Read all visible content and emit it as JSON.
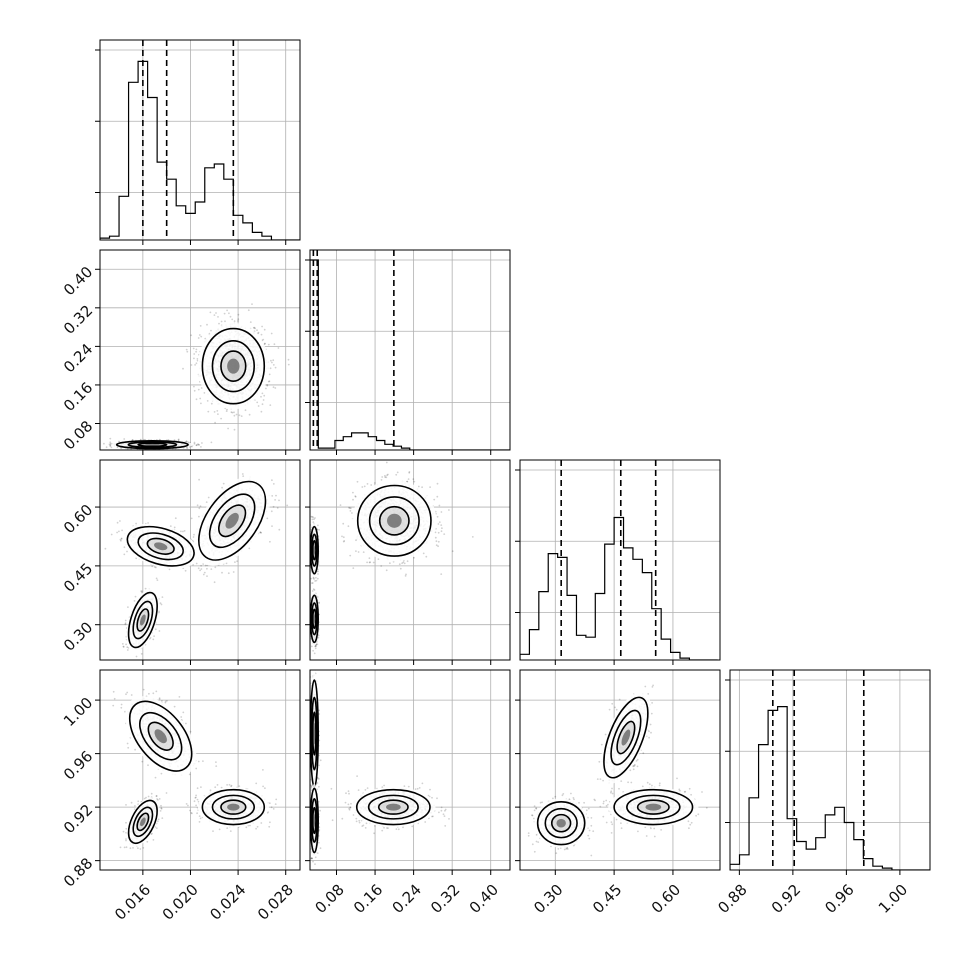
{
  "chart_data": {
    "type": "corner",
    "variables": [
      {
        "range": [
          0.0124,
          0.0292
        ],
        "ticks": [
          0.016,
          0.02,
          0.024,
          0.028
        ],
        "tick_labels": [
          "0.016",
          "0.020",
          "0.024",
          "0.028"
        ],
        "quantiles": [
          0.016,
          0.018,
          0.0236
        ]
      },
      {
        "range": [
          0.025,
          0.44
        ],
        "ticks": [
          0.08,
          0.16,
          0.24,
          0.32,
          0.4
        ],
        "tick_labels": [
          "0.08",
          "0.16",
          "0.24",
          "0.32",
          "0.40"
        ],
        "quantiles": [
          0.032,
          0.04,
          0.199
        ]
      },
      {
        "range": [
          0.21,
          0.72
        ],
        "ticks": [
          0.3,
          0.45,
          0.6
        ],
        "tick_labels": [
          "0.30",
          "0.45",
          "0.60"
        ],
        "quantiles": [
          0.315,
          0.467,
          0.556
        ]
      },
      {
        "range": [
          0.873,
          1.0225
        ],
        "ticks": [
          0.88,
          0.92,
          0.96,
          1.0
        ],
        "tick_labels": [
          "0.88",
          "0.92",
          "0.96",
          "1.00"
        ],
        "quantiles": [
          0.905,
          0.921,
          0.973
        ]
      }
    ],
    "histograms": [
      {
        "variable": 0,
        "x_start": 0.0124,
        "bin_width": 0.0008,
        "max": 100,
        "counts": [
          1,
          2,
          23,
          83,
          94,
          75,
          41,
          32,
          18,
          14,
          20,
          38,
          40,
          32,
          13,
          9,
          4,
          2,
          0,
          0,
          0
        ]
      },
      {
        "variable": 1,
        "x_start": 0.025,
        "bin_width": 0.01725,
        "max": 100,
        "counts": [
          100,
          1,
          1,
          5,
          7,
          9,
          9,
          7,
          5,
          3,
          2,
          1,
          0,
          0,
          0,
          0,
          0,
          0,
          0,
          0,
          0,
          0,
          0,
          0
        ]
      },
      {
        "variable": 2,
        "x_start": 0.21,
        "bin_width": 0.024,
        "max": 100,
        "counts": [
          3,
          16,
          36,
          56,
          54,
          34,
          13,
          12,
          35,
          61,
          75,
          59,
          53,
          46,
          27,
          11,
          4,
          1,
          0,
          0,
          0
        ]
      },
      {
        "variable": 3,
        "x_start": 0.873,
        "bin_width": 0.00712,
        "max": 100,
        "counts": [
          3,
          8,
          38,
          66,
          84,
          86,
          27,
          15,
          11,
          17,
          29,
          33,
          25,
          16,
          6,
          2,
          1,
          0,
          0,
          0,
          0
        ]
      }
    ],
    "scatter_panels": [
      {
        "x": 0,
        "y": 1,
        "modes": [
          {
            "cx": 0.0236,
            "cy": 0.199,
            "sx": 0.0013,
            "sy": 0.039,
            "rho": 0.0,
            "n": 1500
          },
          {
            "cx": 0.0168,
            "cy": 0.036,
            "sx": 0.0015,
            "sy": 0.004,
            "rho": 0.0,
            "n": 900
          }
        ]
      },
      {
        "x": 0,
        "y": 2,
        "modes": [
          {
            "cx": 0.016,
            "cy": 0.312,
            "sx": 0.0006,
            "sy": 0.035,
            "rho": 0.5,
            "n": 500
          },
          {
            "cx": 0.0175,
            "cy": 0.5,
            "sx": 0.0014,
            "sy": 0.025,
            "rho": -0.35,
            "n": 550
          },
          {
            "cx": 0.0235,
            "cy": 0.565,
            "sx": 0.0014,
            "sy": 0.05,
            "rho": 0.5,
            "n": 800
          }
        ]
      },
      {
        "x": 1,
        "y": 2,
        "modes": [
          {
            "cx": 0.2,
            "cy": 0.565,
            "sx": 0.038,
            "sy": 0.045,
            "rho": 0.0,
            "n": 1100
          },
          {
            "cx": 0.034,
            "cy": 0.315,
            "sx": 0.004,
            "sy": 0.03,
            "rho": 0.0,
            "n": 500
          },
          {
            "cx": 0.034,
            "cy": 0.49,
            "sx": 0.004,
            "sy": 0.03,
            "rho": 0.0,
            "n": 500
          }
        ]
      },
      {
        "x": 0,
        "y": 3,
        "modes": [
          {
            "cx": 0.0175,
            "cy": 0.973,
            "sx": 0.0013,
            "sy": 0.013,
            "rho": -0.5,
            "n": 650
          },
          {
            "cx": 0.016,
            "cy": 0.909,
            "sx": 0.0006,
            "sy": 0.008,
            "rho": 0.5,
            "n": 500
          },
          {
            "cx": 0.0236,
            "cy": 0.92,
            "sx": 0.0013,
            "sy": 0.0065,
            "rho": 0.0,
            "n": 750
          }
        ]
      },
      {
        "x": 1,
        "y": 3,
        "modes": [
          {
            "cx": 0.198,
            "cy": 0.92,
            "sx": 0.038,
            "sy": 0.0065,
            "rho": 0.0,
            "n": 900
          },
          {
            "cx": 0.034,
            "cy": 0.975,
            "sx": 0.004,
            "sy": 0.02,
            "rho": 0.0,
            "n": 450
          },
          {
            "cx": 0.034,
            "cy": 0.91,
            "sx": 0.004,
            "sy": 0.012,
            "rho": 0.0,
            "n": 450
          }
        ]
      },
      {
        "x": 2,
        "y": 3,
        "modes": [
          {
            "cx": 0.315,
            "cy": 0.908,
            "sx": 0.03,
            "sy": 0.008,
            "rho": 0.0,
            "n": 550
          },
          {
            "cx": 0.48,
            "cy": 0.972,
            "sx": 0.028,
            "sy": 0.015,
            "rho": 0.6,
            "n": 600
          },
          {
            "cx": 0.55,
            "cy": 0.92,
            "sx": 0.05,
            "sy": 0.0065,
            "rho": 0.0,
            "n": 700
          }
        ]
      }
    ],
    "grid": true,
    "colors": {
      "line": "#000000",
      "grid": "#b0b0b0",
      "points": "#000000"
    }
  }
}
